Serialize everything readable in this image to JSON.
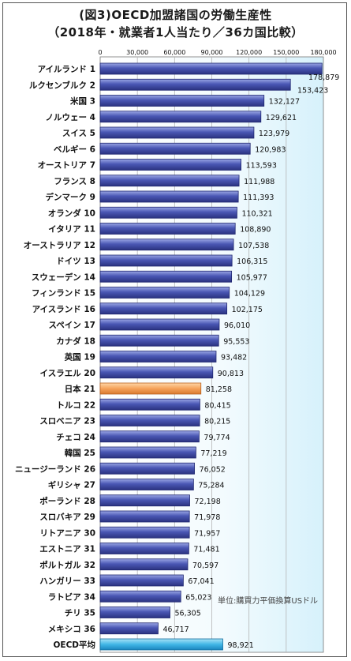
{
  "chart_data": {
    "type": "bar",
    "orientation": "horizontal",
    "title": "(図3)OECD加盟諸国の労働生産性",
    "subtitle": "（2018年・就業者1人当たり／36カ国比較）",
    "unit_note": "単位:購買力平価換算USドル",
    "xlim": [
      0,
      180000
    ],
    "xticks": [
      "0",
      "30,000",
      "60,000",
      "90,000",
      "120,000",
      "150,000",
      "180,000"
    ],
    "grid": true,
    "colors": {
      "bar": "#3f4ba8",
      "highlight": "#f5a25a",
      "average": "#41b6e6"
    },
    "bars": [
      {
        "name": "アイルランド",
        "rank": "1",
        "value": 178879,
        "label": "178,879"
      },
      {
        "name": "ルクセンブルク",
        "rank": "2",
        "value": 153423,
        "label": "153,423"
      },
      {
        "name": "米国",
        "rank": "3",
        "value": 132127,
        "label": "132,127"
      },
      {
        "name": "ノルウェー",
        "rank": "4",
        "value": 129621,
        "label": "129,621"
      },
      {
        "name": "スイス",
        "rank": "5",
        "value": 123979,
        "label": "123,979"
      },
      {
        "name": "ベルギー",
        "rank": "6",
        "value": 120983,
        "label": "120,983"
      },
      {
        "name": "オーストリア",
        "rank": "7",
        "value": 113593,
        "label": "113,593"
      },
      {
        "name": "フランス",
        "rank": "8",
        "value": 111988,
        "label": "111,988"
      },
      {
        "name": "デンマーク",
        "rank": "9",
        "value": 111393,
        "label": "111,393"
      },
      {
        "name": "オランダ",
        "rank": "10",
        "value": 110321,
        "label": "110,321"
      },
      {
        "name": "イタリア",
        "rank": "11",
        "value": 108890,
        "label": "108,890"
      },
      {
        "name": "オーストラリア",
        "rank": "12",
        "value": 107538,
        "label": "107,538"
      },
      {
        "name": "ドイツ",
        "rank": "13",
        "value": 106315,
        "label": "106,315"
      },
      {
        "name": "スウェーデン",
        "rank": "14",
        "value": 105977,
        "label": "105,977"
      },
      {
        "name": "フィンランド",
        "rank": "15",
        "value": 104129,
        "label": "104,129"
      },
      {
        "name": "アイスランド",
        "rank": "16",
        "value": 102175,
        "label": "102,175"
      },
      {
        "name": "スペイン",
        "rank": "17",
        "value": 96010,
        "label": "96,010"
      },
      {
        "name": "カナダ",
        "rank": "18",
        "value": 95553,
        "label": "95,553"
      },
      {
        "name": "英国",
        "rank": "19",
        "value": 93482,
        "label": "93,482"
      },
      {
        "name": "イスラエル",
        "rank": "20",
        "value": 90813,
        "label": "90,813"
      },
      {
        "name": "日本",
        "rank": "21",
        "value": 81258,
        "label": "81,258",
        "highlight": true
      },
      {
        "name": "トルコ",
        "rank": "22",
        "value": 80415,
        "label": "80,415"
      },
      {
        "name": "スロベニア",
        "rank": "23",
        "value": 80215,
        "label": "80,215"
      },
      {
        "name": "チェコ",
        "rank": "24",
        "value": 79774,
        "label": "79,774"
      },
      {
        "name": "韓国",
        "rank": "25",
        "value": 77219,
        "label": "77,219"
      },
      {
        "name": "ニュージーランド",
        "rank": "26",
        "value": 76052,
        "label": "76,052"
      },
      {
        "name": "ギリシャ",
        "rank": "27",
        "value": 75284,
        "label": "75,284"
      },
      {
        "name": "ポーランド",
        "rank": "28",
        "value": 72198,
        "label": "72,198"
      },
      {
        "name": "スロバキア",
        "rank": "29",
        "value": 71978,
        "label": "71,978"
      },
      {
        "name": "リトアニア",
        "rank": "30",
        "value": 71957,
        "label": "71,957"
      },
      {
        "name": "エストニア",
        "rank": "31",
        "value": 71481,
        "label": "71,481"
      },
      {
        "name": "ポルトガル",
        "rank": "32",
        "value": 70597,
        "label": "70,597"
      },
      {
        "name": "ハンガリー",
        "rank": "33",
        "value": 67041,
        "label": "67,041"
      },
      {
        "name": "ラトビア",
        "rank": "34",
        "value": 65023,
        "label": "65,023"
      },
      {
        "name": "チリ",
        "rank": "35",
        "value": 56305,
        "label": "56,305"
      },
      {
        "name": "メキシコ",
        "rank": "36",
        "value": 46717,
        "label": "46,717"
      },
      {
        "name": "OECD平均",
        "rank": "",
        "value": 98921,
        "label": "98,921",
        "average": true
      }
    ]
  }
}
